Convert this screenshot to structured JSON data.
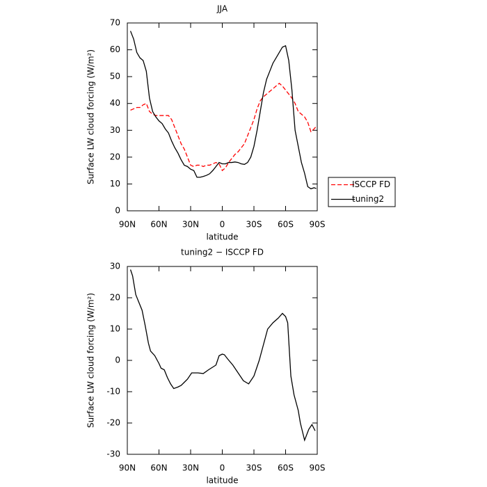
{
  "chart_data": [
    {
      "type": "line",
      "title": "JJA",
      "xlabel": "latitude",
      "ylabel": "Surface LW cloud forcing (W/m²)",
      "x": [
        87,
        84,
        81,
        78,
        75,
        72,
        69,
        66,
        63,
        60,
        57,
        54,
        51,
        48,
        45,
        42,
        39,
        36,
        33,
        30,
        27,
        24,
        21,
        18,
        15,
        12,
        9,
        6,
        3,
        0,
        -3,
        -6,
        -9,
        -12,
        -15,
        -18,
        -21,
        -24,
        -27,
        -30,
        -33,
        -36,
        -39,
        -42,
        -45,
        -48,
        -51,
        -54,
        -57,
        -60,
        -63,
        -66,
        -69,
        -72,
        -75,
        -78,
        -81,
        -84,
        -87,
        -89
      ],
      "series": [
        {
          "name": "ISCCP FD",
          "color": "#ff0000",
          "style": "dashed",
          "values": [
            37.5,
            38,
            38.5,
            38.5,
            39.5,
            40,
            37,
            36,
            35.5,
            35.5,
            35.5,
            35.5,
            35.5,
            34,
            31,
            28,
            25,
            23,
            20,
            17,
            16.5,
            17,
            17,
            16.5,
            17,
            17,
            17.5,
            18,
            17.5,
            15,
            16,
            18,
            19.5,
            21,
            22,
            23.5,
            25,
            28,
            31,
            34,
            38,
            41,
            42.5,
            43.5,
            44.5,
            45.5,
            46.5,
            47.5,
            46.5,
            45,
            43.5,
            42,
            40,
            37,
            36,
            35,
            33,
            29.5,
            30.5,
            31.5
          ]
        },
        {
          "name": "tuning2",
          "color": "#000000",
          "style": "solid",
          "values": [
            67,
            64,
            59,
            57,
            56,
            52,
            42,
            37,
            35,
            33.5,
            32.5,
            30.5,
            29,
            26,
            23.5,
            21.5,
            19,
            17,
            16.5,
            15.5,
            15,
            12.5,
            12.5,
            12.8,
            13.2,
            13.8,
            15,
            16.5,
            18,
            17.5,
            17.5,
            18,
            18,
            18.2,
            18,
            17.5,
            17.3,
            18,
            20,
            24,
            30,
            37,
            44,
            49,
            52,
            55,
            57,
            59,
            61,
            61.5,
            56,
            45,
            30,
            24,
            18,
            14,
            9,
            8.2,
            8.6,
            8.3
          ]
        }
      ],
      "xlim": [
        90,
        -90
      ],
      "xticks": [
        {
          "value": 90,
          "label": "90N"
        },
        {
          "value": 60,
          "label": "60N"
        },
        {
          "value": 30,
          "label": "30N"
        },
        0,
        {
          "value": -30,
          "label": "30S"
        },
        {
          "value": -60,
          "label": "60S"
        },
        {
          "value": -90,
          "label": "90S"
        }
      ],
      "ylim": [
        0,
        70
      ],
      "yticks": [
        0,
        10,
        20,
        30,
        40,
        50,
        60,
        70
      ],
      "legend": "outside-right"
    },
    {
      "type": "line",
      "title": "tuning2 − ISCCP FD",
      "xlabel": "latitude",
      "ylabel": "Surface LW cloud forcing (W/m²)",
      "x": [
        87,
        85,
        82,
        79,
        76,
        73,
        70,
        68,
        64,
        60,
        58,
        55,
        52,
        49,
        46,
        42,
        39,
        36,
        33,
        29,
        23,
        18,
        13,
        6,
        3,
        0,
        -2,
        -5,
        -10,
        -15,
        -20,
        -25,
        -30,
        -35,
        -39,
        -43,
        -48,
        -53,
        -57,
        -60,
        -62,
        -65,
        -68,
        -72,
        -74,
        -78,
        -82,
        -85,
        -88
      ],
      "series": [
        {
          "name": "tuning2 − ISCCP FD",
          "color": "#000000",
          "style": "solid",
          "values": [
            29,
            27,
            21,
            18.5,
            16,
            11,
            5.5,
            3,
            1.5,
            -1,
            -2.5,
            -3,
            -5.5,
            -7.5,
            -9,
            -8.5,
            -8,
            -7,
            -6,
            -4,
            -4,
            -4.2,
            -3,
            -1.5,
            1.5,
            2,
            1.8,
            0.5,
            -1.5,
            -4,
            -6.5,
            -7.5,
            -5,
            0,
            5,
            10,
            12,
            13.5,
            15,
            14,
            12,
            -5,
            -11,
            -16,
            -20,
            -25.5,
            -22,
            -20.5,
            -22.5
          ]
        }
      ],
      "xlim": [
        90,
        -90
      ],
      "xticks": [
        {
          "value": 90,
          "label": "90N"
        },
        {
          "value": 60,
          "label": "60N"
        },
        {
          "value": 30,
          "label": "30N"
        },
        0,
        {
          "value": -30,
          "label": "30S"
        },
        {
          "value": -60,
          "label": "60S"
        },
        {
          "value": -90,
          "label": "90S"
        }
      ],
      "ylim": [
        -30,
        30
      ],
      "yticks": [
        -30,
        -20,
        -10,
        0,
        10,
        20,
        30
      ]
    }
  ]
}
